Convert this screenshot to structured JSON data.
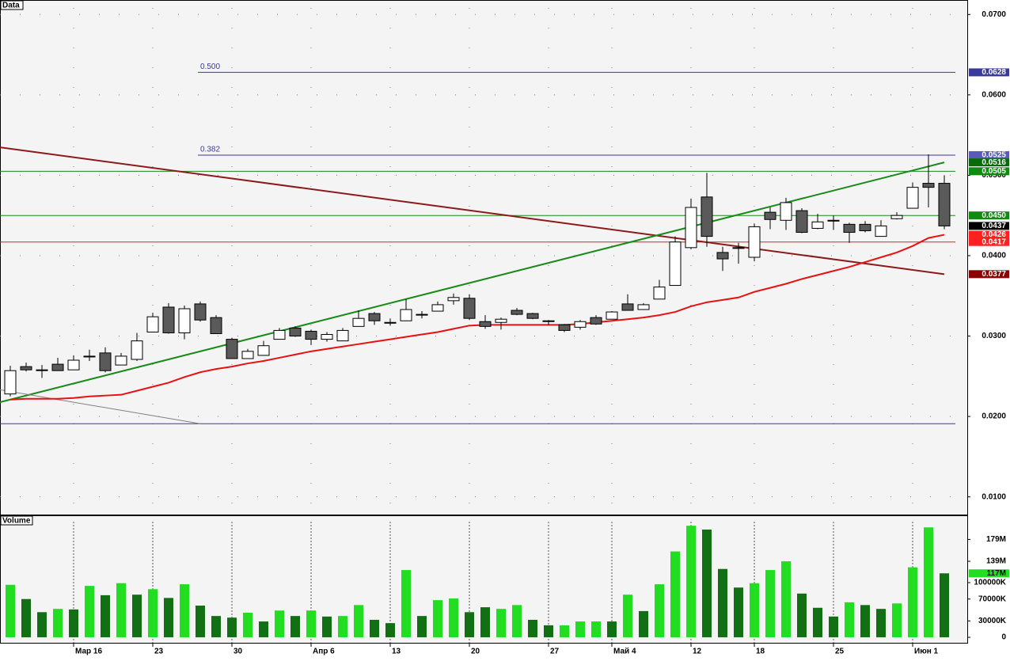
{
  "chart_data": {
    "type": "candlestick",
    "panel_label": "Data",
    "volume_label": "Volume",
    "categories": [
      null,
      null,
      null,
      null,
      "Мар 16",
      null,
      null,
      null,
      null,
      "23",
      null,
      null,
      null,
      null,
      "30",
      null,
      null,
      null,
      null,
      "Апр 6",
      null,
      null,
      null,
      null,
      "13",
      null,
      null,
      null,
      null,
      "20",
      null,
      null,
      null,
      null,
      "27",
      null,
      null,
      null,
      "Май 4",
      null,
      null,
      null,
      null,
      "12",
      null,
      null,
      null,
      "18",
      null,
      null,
      null,
      null,
      "25",
      null,
      null,
      null,
      null,
      "Июн 1",
      null,
      null
    ],
    "open": [
      0.0228,
      0.0262,
      0.0257,
      0.0265,
      0.0258,
      0.0274,
      0.0279,
      0.0264,
      0.0271,
      0.0305,
      0.0336,
      0.0304,
      0.034,
      0.0323,
      0.0296,
      0.0272,
      0.0276,
      0.0296,
      0.031,
      0.0306,
      0.0296,
      0.0294,
      0.0312,
      0.0328,
      0.0316,
      0.0319,
      0.0326,
      0.0331,
      0.0344,
      0.0347,
      0.0318,
      0.0317,
      0.0332,
      0.0328,
      0.0318,
      0.0314,
      0.0311,
      0.0323,
      0.0321,
      0.034,
      0.0333,
      0.0346,
      0.0363,
      0.041,
      0.0473,
      0.0404,
      0.0409,
      0.0398,
      0.0454,
      0.0444,
      0.0456,
      0.0434,
      0.0443,
      0.0439,
      0.0439,
      0.0424,
      0.0446,
      0.0459,
      0.049,
      0.049
    ],
    "high": [
      0.0263,
      0.0267,
      0.0264,
      0.0273,
      0.0276,
      0.0283,
      0.0286,
      0.0279,
      0.0304,
      0.0329,
      0.0341,
      0.0338,
      0.0343,
      0.0326,
      0.0298,
      0.0284,
      0.0294,
      0.031,
      0.0312,
      0.0308,
      0.0305,
      0.031,
      0.0332,
      0.033,
      0.0322,
      0.0346,
      0.0331,
      0.0343,
      0.0353,
      0.0352,
      0.0326,
      0.0323,
      0.0335,
      0.0329,
      0.032,
      0.0315,
      0.032,
      0.0326,
      0.0331,
      0.0352,
      0.0341,
      0.037,
      0.0424,
      0.0471,
      0.0503,
      0.0411,
      0.0416,
      0.044,
      0.046,
      0.0472,
      0.0459,
      0.0452,
      0.045,
      0.0441,
      0.0443,
      0.0444,
      0.0454,
      0.0491,
      0.0526,
      0.05
    ],
    "low": [
      0.0225,
      0.0256,
      0.0248,
      0.0257,
      0.0258,
      0.0269,
      0.0255,
      0.0264,
      0.0269,
      0.0305,
      0.0303,
      0.0296,
      0.0318,
      0.0303,
      0.0272,
      0.0272,
      0.0276,
      0.0296,
      0.0299,
      0.0289,
      0.0293,
      0.0294,
      0.0312,
      0.0314,
      0.0313,
      0.0319,
      0.0322,
      0.0331,
      0.0339,
      0.032,
      0.0309,
      0.0308,
      0.0326,
      0.0321,
      0.0314,
      0.0305,
      0.0308,
      0.0314,
      0.0321,
      0.0332,
      0.0333,
      0.0346,
      0.0363,
      0.0408,
      0.0411,
      0.0381,
      0.039,
      0.0393,
      0.0433,
      0.0432,
      0.0428,
      0.0433,
      0.0432,
      0.0416,
      0.0429,
      0.0424,
      0.0445,
      0.0459,
      0.046,
      0.0433
    ],
    "close": [
      0.0257,
      0.0258,
      0.0258,
      0.0257,
      0.027,
      0.0275,
      0.0257,
      0.0275,
      0.0294,
      0.0324,
      0.0304,
      0.0334,
      0.032,
      0.0303,
      0.0272,
      0.0281,
      0.0288,
      0.0307,
      0.03,
      0.0296,
      0.0302,
      0.0307,
      0.0322,
      0.0319,
      0.0317,
      0.0333,
      0.0327,
      0.0339,
      0.0348,
      0.0322,
      0.0312,
      0.0321,
      0.0327,
      0.0322,
      0.0319,
      0.0307,
      0.0318,
      0.0315,
      0.033,
      0.0332,
      0.0339,
      0.0361,
      0.0417,
      0.046,
      0.0424,
      0.0396,
      0.041,
      0.0436,
      0.0445,
      0.0466,
      0.0429,
      0.0442,
      0.0444,
      0.0429,
      0.0431,
      0.0437,
      0.045,
      0.0485,
      0.0485,
      0.0437
    ],
    "up_color": "#ffffff",
    "down_color": "#5a5a5a",
    "ylim": [
      0.0078,
      0.0718
    ],
    "yticks": [
      {
        "value": 0.07,
        "label": "0.0700"
      },
      {
        "value": 0.06,
        "label": "0.0600"
      },
      {
        "value": 0.05,
        "label": "0.0500"
      },
      {
        "value": 0.04,
        "label": "0.0400"
      },
      {
        "value": 0.03,
        "label": "0.0300"
      },
      {
        "value": 0.02,
        "label": "0.0200"
      },
      {
        "value": 0.01,
        "label": "0.0100"
      }
    ],
    "grid": true,
    "moving_average": {
      "color": "#e81010",
      "values": [
        0.0221,
        0.0222,
        0.0222,
        0.0222,
        0.0223,
        0.0225,
        0.0226,
        0.0227,
        0.0232,
        0.0237,
        0.0242,
        0.0249,
        0.0255,
        0.0259,
        0.0262,
        0.0266,
        0.0269,
        0.0273,
        0.0277,
        0.0281,
        0.0284,
        0.0287,
        0.029,
        0.0293,
        0.0296,
        0.0299,
        0.0302,
        0.0305,
        0.0309,
        0.0313,
        0.0314,
        0.0314,
        0.0314,
        0.0314,
        0.0314,
        0.0314,
        0.0315,
        0.0317,
        0.0319,
        0.0321,
        0.0323,
        0.0326,
        0.033,
        0.0337,
        0.0342,
        0.0345,
        0.0348,
        0.0355,
        0.036,
        0.0365,
        0.0371,
        0.0376,
        0.0381,
        0.0386,
        0.0392,
        0.0398,
        0.0404,
        0.0412,
        0.0422,
        0.0426
      ]
    },
    "trend_lines": [
      {
        "color": "#8b1a1a",
        "x": [
          0,
          59
        ],
        "y": [
          0.0533,
          0.0377
        ]
      },
      {
        "color": "#1a8a1a",
        "x": [
          0,
          59
        ],
        "y": [
          0.0221,
          0.0516
        ]
      },
      {
        "color": "#808080",
        "x": [
          0,
          12
        ],
        "y": [
          0.0231,
          0.0191
        ]
      }
    ],
    "levels": [
      {
        "value": 0.0505,
        "color": "#1a8a1a"
      },
      {
        "value": 0.045,
        "color": "#1a8a1a"
      },
      {
        "value": 0.0417,
        "color": "#e02020"
      }
    ],
    "fibonacci": {
      "color": "#3a3a9a",
      "base": 0.0191,
      "start": 12,
      "levels": [
        {
          "value": 0.0628,
          "label": "0.500"
        },
        {
          "value": 0.0525,
          "label": "0.382"
        }
      ]
    },
    "markers": [
      {
        "value": 0.0628,
        "label": "0.0628",
        "color": "#3a3a9a"
      },
      {
        "value": 0.0525,
        "label": "0.0525",
        "color": "#5a5aba"
      },
      {
        "value": 0.0516,
        "label": "0.0516",
        "color": "#0a6a0a"
      },
      {
        "value": 0.0505,
        "label": "0.0505",
        "color": "#108a10"
      },
      {
        "value": 0.045,
        "label": "0.0450",
        "color": "#108a10"
      },
      {
        "value": 0.0437,
        "label": "0.0437",
        "color": "#000000"
      },
      {
        "value": 0.0426,
        "label": "0.0426",
        "color": "#ff2020"
      },
      {
        "value": 0.0417,
        "label": "0.0417",
        "color": "#ff2020"
      },
      {
        "value": 0.0377,
        "label": "0.0377",
        "color": "#8b0000"
      }
    ],
    "volume": {
      "values": [
        96000000,
        70000000,
        46000000,
        52000000,
        51000000,
        94000000,
        77000000,
        99000000,
        78000000,
        88000000,
        72000000,
        97000000,
        58000000,
        39000000,
        36000000,
        45000000,
        29000000,
        49000000,
        39000000,
        49000000,
        38000000,
        39000000,
        59000000,
        32000000,
        26000000,
        123000000,
        39000000,
        68000000,
        71000000,
        46000000,
        55000000,
        52000000,
        59000000,
        32000000,
        22000000,
        22000000,
        29000000,
        29000000,
        29000000,
        78000000,
        48000000,
        97000000,
        157000000,
        204000000,
        197000000,
        125000000,
        91000000,
        99000000,
        123000000,
        139000000,
        80000000,
        54000000,
        38000000,
        64000000,
        59000000,
        52000000,
        62000000,
        128000000,
        201000000,
        117000000
      ],
      "rising": [
        true,
        false,
        false,
        true,
        false,
        true,
        false,
        true,
        false,
        true,
        false,
        true,
        false,
        false,
        false,
        true,
        false,
        true,
        false,
        true,
        false,
        true,
        true,
        false,
        false,
        true,
        false,
        true,
        true,
        false,
        false,
        true,
        true,
        false,
        false,
        true,
        true,
        true,
        false,
        true,
        false,
        true,
        true,
        true,
        false,
        false,
        false,
        true,
        true,
        true,
        false,
        false,
        false,
        true,
        false,
        false,
        true,
        true,
        true,
        false
      ],
      "up_color": "#22dd22",
      "down_color": "#136f13",
      "ylim": [
        -10000000,
        223000000
      ],
      "yticks": [
        {
          "value": 179000000,
          "label": "179M"
        },
        {
          "value": 139000000,
          "label": "139M"
        },
        {
          "value": 100000000,
          "label": "100000K"
        },
        {
          "value": 70000000,
          "label": "70000K"
        },
        {
          "value": 30000000,
          "label": "30000K"
        },
        0
      ],
      "marker": {
        "value": 117000000,
        "label": "117M",
        "color": "#22dd22"
      }
    }
  }
}
